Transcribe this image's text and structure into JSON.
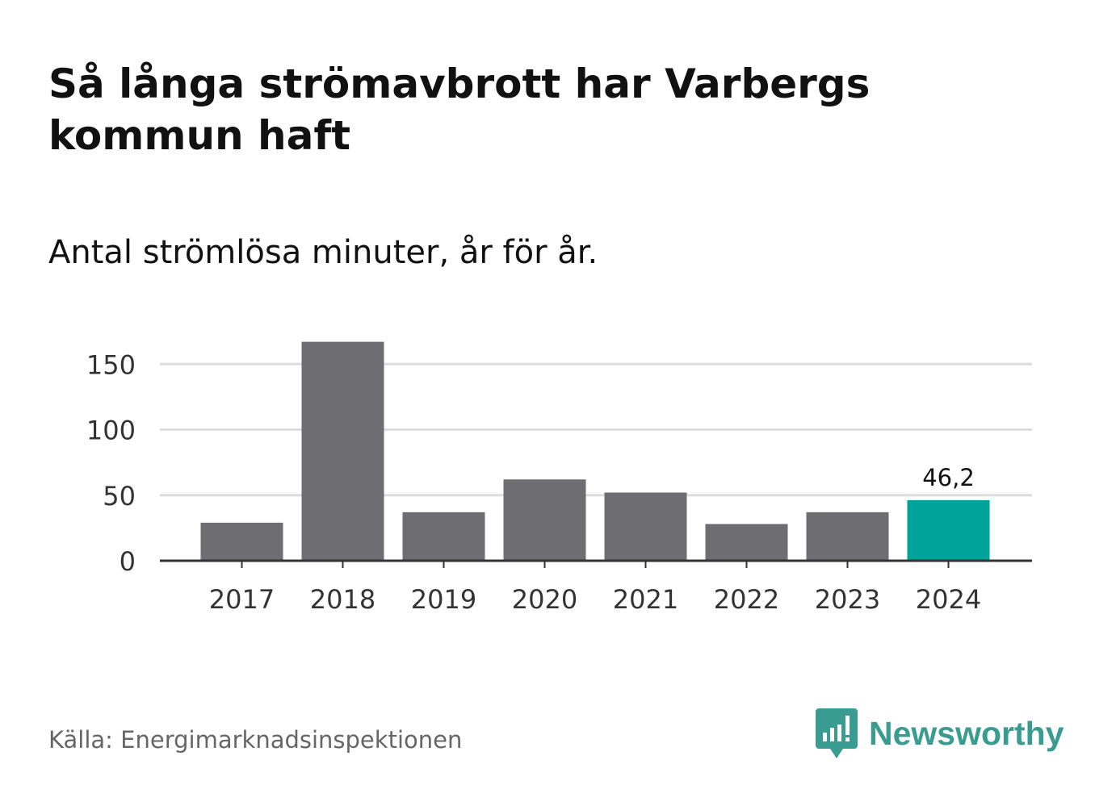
{
  "title": "Så långa strömavbrott har Varbergs kommun haft",
  "subtitle": "Antal strömlösa minuter, år för år.",
  "source": "Källa: Energimarknadsinspektionen",
  "brand": {
    "name": "Newsworthy",
    "icon": "newsworthy-logo-icon",
    "color": "#3a9c90"
  },
  "colors": {
    "bar": "#6e6d72",
    "highlight": "#00a39a",
    "grid": "#dddddd",
    "axis": "#333333",
    "text": "#111111"
  },
  "chart_data": {
    "type": "bar",
    "title": "Så långa strömavbrott har Varbergs kommun haft",
    "subtitle": "Antal strömlösa minuter, år för år.",
    "xlabel": "",
    "ylabel": "",
    "categories": [
      "2017",
      "2018",
      "2019",
      "2020",
      "2021",
      "2022",
      "2023",
      "2024"
    ],
    "values": [
      29,
      167,
      37,
      62,
      52,
      28,
      37,
      46.2
    ],
    "highlight_index": 7,
    "data_labels": [
      {
        "index": 7,
        "text": "46,2"
      }
    ],
    "yticks": [
      0,
      50,
      100,
      150
    ],
    "ytick_labels": [
      "0",
      "50",
      "100",
      "150"
    ],
    "ylim": [
      0,
      167
    ],
    "grid": true
  }
}
